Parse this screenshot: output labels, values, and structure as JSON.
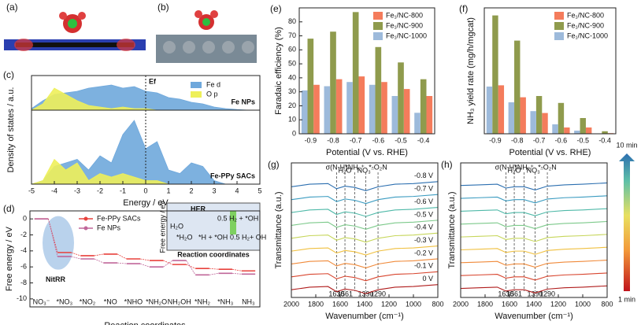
{
  "images": [
    {
      "panel_label": "(a)"
    },
    {
      "panel_label": "(b)"
    }
  ],
  "colorbar": {
    "top": "10 min",
    "bottom": "1 min"
  },
  "chart_data": [
    {
      "type": "area",
      "panel_label": "(c)",
      "xlabel": "Energy / eV",
      "ylabel": "Density of states / a.u.",
      "x": [
        -5,
        -4.5,
        -4,
        -3.5,
        -3,
        -2.5,
        -2,
        -1.5,
        -1,
        -0.5,
        0,
        0.5,
        1,
        1.5,
        2,
        2.5,
        3,
        3.5,
        4,
        4.5,
        5
      ],
      "xlim": [
        -5,
        5
      ],
      "xticks": [
        -5,
        -4,
        -3,
        -2,
        -1,
        0,
        1,
        2,
        3,
        4,
        5
      ],
      "ylim": [
        0,
        1
      ],
      "fermi_level": 0,
      "fermi_label": "Ef",
      "subplots": [
        {
          "label": "Fe NPs",
          "series": [
            {
              "name": "Fe d",
              "color": "#6fa8dc",
              "values": [
                0.05,
                0.3,
                0.5,
                0.55,
                0.6,
                0.7,
                0.75,
                0.8,
                0.7,
                0.75,
                0.6,
                0.55,
                0.4,
                0.35,
                0.25,
                0.2,
                0.1,
                0.05,
                0.02,
                0,
                0
              ]
            },
            {
              "name": "O p",
              "color": "#eef05a",
              "values": [
                0,
                0.2,
                0.7,
                0.5,
                0.3,
                0.15,
                0.1,
                0.05,
                0.1,
                0.05,
                0.05,
                0,
                0,
                0,
                0,
                0,
                0,
                0,
                0,
                0,
                0
              ]
            }
          ]
        },
        {
          "label": "Fe-PPy SACs",
          "series": [
            {
              "name": "Fe d",
              "color": "#6fa8dc",
              "values": [
                0,
                0.05,
                0.25,
                0.3,
                0.35,
                0.2,
                0.4,
                0.3,
                0.7,
                0.9,
                0.5,
                0.6,
                0.2,
                0.15,
                0.3,
                0.25,
                0.05,
                0,
                0,
                0,
                0
              ]
            },
            {
              "name": "O p",
              "color": "#eef05a",
              "values": [
                0,
                0.05,
                0.35,
                0.2,
                0.3,
                0.05,
                0.15,
                0.1,
                0.15,
                0.1,
                0.05,
                0.05,
                0,
                0,
                0,
                0,
                0,
                0,
                0,
                0,
                0
              ]
            }
          ]
        }
      ]
    },
    {
      "type": "energy",
      "panel_label": "(d)",
      "xlabel": "Reaction coordinates",
      "ylabel": "Free energy / eV",
      "categories": [
        "NO₃⁻",
        "*NO₃",
        "*NO₂",
        "*NO",
        "*NHO",
        "*NH₂O",
        "NH₂OH",
        "*NH₂",
        "*NH₃",
        "NH₃"
      ],
      "ylim": [
        -11,
        1
      ],
      "yticks": [
        0,
        -2,
        -4,
        -6,
        -8,
        -10
      ],
      "annotation": "NitRR",
      "series": [
        {
          "name": "Fe-PPy SACs",
          "color": "#e8413c",
          "values": [
            0,
            -4.2,
            -4.6,
            -4.4,
            -5.0,
            -5.2,
            -5.7,
            -6.2,
            -6.3,
            -6.5
          ]
        },
        {
          "name": "Fe NPs",
          "color": "#c0679a",
          "values": [
            0,
            -4.7,
            -5.0,
            -5.5,
            -5.6,
            -6.0,
            -5.2,
            -7.0,
            -6.8,
            -6.9
          ]
        }
      ],
      "her_inset": {
        "title": "HER",
        "ylabel": "Free energy / eV",
        "xlabel": "Reaction coordinates",
        "states": [
          "H₂O",
          "*H₂O",
          "*H + *OH",
          "0.5 H₂ + *OH",
          "0.5 H₂+ OH"
        ]
      }
    },
    {
      "type": "bar",
      "panel_label": "(e)",
      "xlabel": "Potential (V vs. RHE)",
      "ylabel": "Faradaic efficiency (%)",
      "categories": [
        "-0.9",
        "-0.8",
        "-0.7",
        "-0.6",
        "-0.5",
        "-0.4"
      ],
      "ylim": [
        0,
        90
      ],
      "yticks": [
        0,
        10,
        20,
        30,
        40,
        50,
        60,
        70,
        80
      ],
      "series": [
        {
          "name": "Fe₁/NC-800",
          "color": "#f47c5c",
          "values": [
            35,
            39,
            41,
            37,
            32,
            27
          ]
        },
        {
          "name": "Fe₁/NC-900",
          "color": "#8f9b4d",
          "values": [
            68,
            73,
            87,
            62,
            51,
            39
          ]
        },
        {
          "name": "Fe₁/NC-1000",
          "color": "#9dbadb",
          "values": [
            31,
            34,
            37,
            35,
            27,
            15
          ]
        }
      ]
    },
    {
      "type": "bar",
      "panel_label": "(f)",
      "xlabel": "Potential (V vs. RHE)",
      "ylabel": "NH₃ yield rate (mg/h/mgcat)",
      "categories": [
        "-0.9",
        "-0.8",
        "-0.7",
        "-0.6",
        "-0.5",
        "-0.4"
      ],
      "ylim": [
        0,
        20
      ],
      "series": [
        {
          "name": "Fe₁/NC-800",
          "color": "#f47c5c",
          "values": [
            7.7,
            5.8,
            3.3,
            1.0,
            1.0,
            0.1
          ]
        },
        {
          "name": "Fe₁/NC-900",
          "color": "#8f9b4d",
          "values": [
            18.8,
            14.8,
            6.0,
            4.9,
            2.5,
            0.4
          ]
        },
        {
          "name": "Fe₁/NC-1000",
          "color": "#9dbadb",
          "values": [
            7.5,
            5.0,
            3.6,
            1.5,
            0.5,
            0.05
          ]
        }
      ]
    },
    {
      "type": "line",
      "panel_label": "(g)",
      "xlabel": "Wavenumber (cm⁻¹)",
      "ylabel": "Transmittance (a.u.)",
      "x": [
        2000,
        1850,
        1700,
        1630,
        1560,
        1480,
        1390,
        1290,
        1150,
        1000,
        800
      ],
      "xlim": [
        2000,
        800
      ],
      "xticks": [
        2000,
        1800,
        1600,
        1400,
        1200,
        1000,
        800
      ],
      "ylim": [
        -0.3,
        9.3
      ],
      "vlines": [
        {
          "x": 1630,
          "note": "σ(N-H)"
        },
        {
          "x": 1561,
          "note": "H₂O"
        },
        {
          "x": 1480,
          "note": "*NH₂⁺"
        },
        {
          "x": 1390,
          "note": "NO₃⁻"
        },
        {
          "x": 1290,
          "note": "*-O₂N"
        }
      ],
      "peak_labels": [
        1630,
        1561,
        1390,
        1290
      ],
      "series": [
        {
          "name": "-0.8 V",
          "color": "#2c6fb0",
          "values": [
            8.3,
            8.5,
            8.55,
            8.15,
            8.35,
            8.25,
            8,
            8.3,
            8.5,
            8.55,
            8.7
          ]
        },
        {
          "name": "-0.7 V",
          "color": "#3a9bc0",
          "values": [
            7.3,
            7.5,
            7.55,
            7.15,
            7.35,
            7.25,
            7,
            7.3,
            7.5,
            7.55,
            7.7
          ]
        },
        {
          "name": "-0.6 V",
          "color": "#4fb9a8",
          "values": [
            6.3,
            6.5,
            6.55,
            6.15,
            6.35,
            6.25,
            6,
            6.3,
            6.5,
            6.55,
            6.7
          ]
        },
        {
          "name": "-0.5 V",
          "color": "#7cc98a",
          "values": [
            5.3,
            5.5,
            5.55,
            5.15,
            5.35,
            5.25,
            5,
            5.3,
            5.5,
            5.55,
            5.7
          ]
        },
        {
          "name": "-0.4 V",
          "color": "#c6d65a",
          "values": [
            4.3,
            4.5,
            4.55,
            4.15,
            4.35,
            4.25,
            4,
            4.3,
            4.5,
            4.55,
            4.7
          ]
        },
        {
          "name": "-0.3 V",
          "color": "#f0c040",
          "values": [
            3.3,
            3.5,
            3.55,
            3.15,
            3.35,
            3.25,
            3,
            3.3,
            3.5,
            3.55,
            3.7
          ]
        },
        {
          "name": "-0.2 V",
          "color": "#f08a3a",
          "values": [
            2.3,
            2.5,
            2.55,
            2.15,
            2.35,
            2.25,
            2,
            2.3,
            2.5,
            2.55,
            2.7
          ]
        },
        {
          "name": "-0.1 V",
          "color": "#d8452e",
          "values": [
            1.3,
            1.5,
            1.55,
            1.15,
            1.35,
            1.25,
            1,
            1.3,
            1.5,
            1.55,
            1.7
          ]
        },
        {
          "name": "0 V",
          "color": "#b01c1c",
          "values": [
            0.3,
            0.5,
            0.55,
            0.15,
            0.35,
            0.25,
            0,
            0.3,
            0.5,
            0.55,
            0.7
          ]
        }
      ]
    },
    {
      "type": "line",
      "panel_label": "(h)",
      "xlabel": "Wavenumber (cm⁻¹)",
      "ylabel": "Transmittance (a.u.)",
      "x": [
        2000,
        1850,
        1700,
        1630,
        1560,
        1480,
        1390,
        1290,
        1150,
        1000,
        800
      ],
      "xlim": [
        2000,
        800
      ],
      "xticks": [
        2000,
        1800,
        1600,
        1400,
        1200,
        1000,
        800
      ],
      "ylim": [
        -0.3,
        9.3
      ],
      "vlines": [
        {
          "x": 1630,
          "note": "σ(N-H)"
        },
        {
          "x": 1561,
          "note": "H₂O"
        },
        {
          "x": 1480,
          "note": "*NH₂⁺"
        },
        {
          "x": 1390,
          "note": "NO₃⁻"
        },
        {
          "x": 1290,
          "note": "*-O₂N"
        }
      ],
      "peak_labels": [
        1630,
        1561,
        1390,
        1290
      ],
      "series": [
        {
          "color": "#2c6fb0",
          "values": [
            8.4,
            8.45,
            8.5,
            8.2,
            8.3,
            8.3,
            8.05,
            8.35,
            8.45,
            8.5,
            8.6
          ]
        },
        {
          "color": "#3a9bc0",
          "values": [
            7.4,
            7.45,
            7.5,
            7.2,
            7.3,
            7.3,
            7.05,
            7.35,
            7.45,
            7.5,
            7.6
          ]
        },
        {
          "color": "#4fb9a8",
          "values": [
            6.4,
            6.45,
            6.5,
            6.2,
            6.3,
            6.3,
            6.05,
            6.35,
            6.45,
            6.5,
            6.6
          ]
        },
        {
          "color": "#7cc98a",
          "values": [
            5.4,
            5.45,
            5.5,
            5.2,
            5.3,
            5.3,
            5.05,
            5.35,
            5.45,
            5.5,
            5.6
          ]
        },
        {
          "color": "#c6d65a",
          "values": [
            4.4,
            4.45,
            4.5,
            4.2,
            4.3,
            4.3,
            4.05,
            4.35,
            4.45,
            4.5,
            4.6
          ]
        },
        {
          "color": "#f0c040",
          "values": [
            3.4,
            3.45,
            3.5,
            3.2,
            3.3,
            3.3,
            3.05,
            3.35,
            3.45,
            3.5,
            3.6
          ]
        },
        {
          "color": "#f08a3a",
          "values": [
            2.4,
            2.45,
            2.5,
            2.2,
            2.3,
            2.3,
            2.05,
            2.35,
            2.45,
            2.5,
            2.6
          ]
        },
        {
          "color": "#d8452e",
          "values": [
            1.4,
            1.45,
            1.5,
            1.2,
            1.3,
            1.3,
            1.05,
            1.35,
            1.45,
            1.5,
            1.6
          ]
        },
        {
          "color": "#b01c1c",
          "values": [
            0.4,
            0.45,
            0.5,
            0.2,
            0.3,
            0.3,
            0.05,
            0.35,
            0.45,
            0.5,
            0.6
          ]
        }
      ]
    }
  ]
}
